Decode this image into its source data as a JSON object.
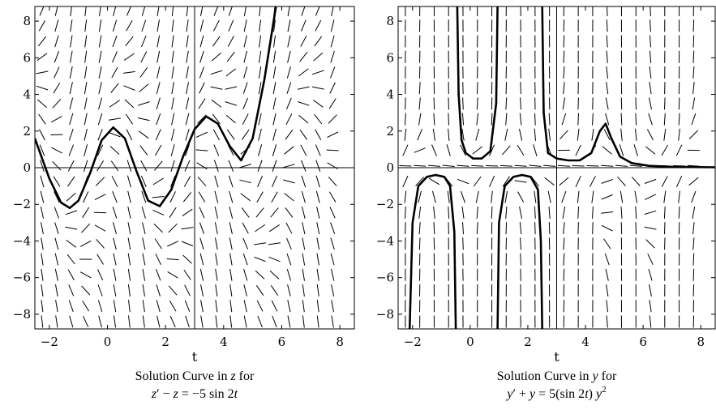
{
  "chart_data": [
    {
      "type": "line",
      "title": "",
      "xlabel": "t",
      "ylabel": "",
      "xlim": [
        -2.5,
        8.5
      ],
      "ylim": [
        -8.8,
        8.8
      ],
      "xticks": [
        "−2",
        "0",
        "2",
        "4",
        "6",
        "8"
      ],
      "yticks": [
        "−8",
        "−6",
        "−4",
        "−2",
        "0",
        "2",
        "4",
        "6",
        "8"
      ],
      "direction_field": "slope lines of z' = z − 5 sin 2t",
      "reference_lines": {
        "horizontal_y": 0,
        "vertical_t": 3
      },
      "series": [
        {
          "x": [
            -2.5,
            -2.0,
            -1.6,
            -1.3,
            -1.0,
            -0.6,
            -0.2,
            0.2,
            0.6,
            1.0,
            1.4,
            1.8,
            2.2,
            2.6,
            3.0,
            3.4,
            3.8,
            4.2,
            4.6,
            5.0,
            5.4,
            5.8
          ],
          "values": [
            1.6,
            -0.6,
            -1.9,
            -2.2,
            -1.8,
            -0.3,
            1.5,
            2.2,
            1.6,
            -0.2,
            -1.8,
            -2.1,
            -1.2,
            0.6,
            2.1,
            2.8,
            2.4,
            1.2,
            0.4,
            1.6,
            4.8,
            8.8
          ]
        }
      ],
      "caption_line1": "Solution Curve in ",
      "caption_var": "z",
      "caption_line1_end": " for",
      "equation": {
        "lhs1": "z",
        "prime": "′",
        "op1": " − ",
        "lhs2": "z",
        "eq": " = −5 sin 2",
        "var": "t"
      }
    },
    {
      "type": "line",
      "title": "",
      "xlabel": "t",
      "ylabel": "",
      "xlim": [
        -2.5,
        8.5
      ],
      "ylim": [
        -8.8,
        8.8
      ],
      "xticks": [
        "−2",
        "0",
        "2",
        "4",
        "6",
        "8"
      ],
      "yticks": [
        "−8",
        "−6",
        "−4",
        "−2",
        "0",
        "2",
        "4",
        "6",
        "8"
      ],
      "direction_field": "slope lines of y' = 5 (sin 2t) y^2 − y",
      "reference_lines": {
        "horizontal_y": 0,
        "vertical_t": 3
      },
      "series": [
        {
          "x": [
            -0.45,
            -0.4,
            -0.3,
            -0.15,
            0.1,
            0.4,
            0.7,
            0.9,
            0.95
          ],
          "values": [
            8.8,
            4.0,
            1.5,
            0.8,
            0.5,
            0.5,
            0.9,
            3.5,
            8.8
          ]
        },
        {
          "x": [
            2.5,
            2.55,
            2.7,
            3.0,
            3.4,
            3.8,
            4.2,
            4.5,
            4.7,
            4.9,
            5.2,
            5.6,
            6.2,
            7.0,
            8.5
          ],
          "values": [
            8.8,
            3.0,
            0.8,
            0.5,
            0.4,
            0.4,
            0.8,
            2.0,
            2.4,
            1.6,
            0.6,
            0.25,
            0.1,
            0.05,
            0.02
          ]
        },
        {
          "x": [
            -2.1,
            -2.0,
            -1.8,
            -1.5,
            -1.2,
            -0.9,
            -0.7,
            -0.55,
            -0.5
          ],
          "values": [
            -8.8,
            -3.0,
            -1.0,
            -0.5,
            -0.4,
            -0.5,
            -1.0,
            -3.5,
            -8.8
          ]
        },
        {
          "x": [
            0.95,
            1.0,
            1.2,
            1.5,
            1.8,
            2.1,
            2.35,
            2.45,
            2.5
          ],
          "values": [
            -8.8,
            -3.0,
            -1.0,
            -0.5,
            -0.4,
            -0.5,
            -1.2,
            -4.0,
            -8.8
          ]
        }
      ],
      "caption_line1": "Solution Curve in ",
      "caption_var": "y",
      "caption_line1_end": " for",
      "equation": {
        "lhs1": "y",
        "prime": "′",
        "op1": " + ",
        "lhs2": "y",
        "eq": " = 5(sin 2",
        "var": "t",
        "close": ") ",
        "var2": "y",
        "exp": "2"
      }
    }
  ]
}
